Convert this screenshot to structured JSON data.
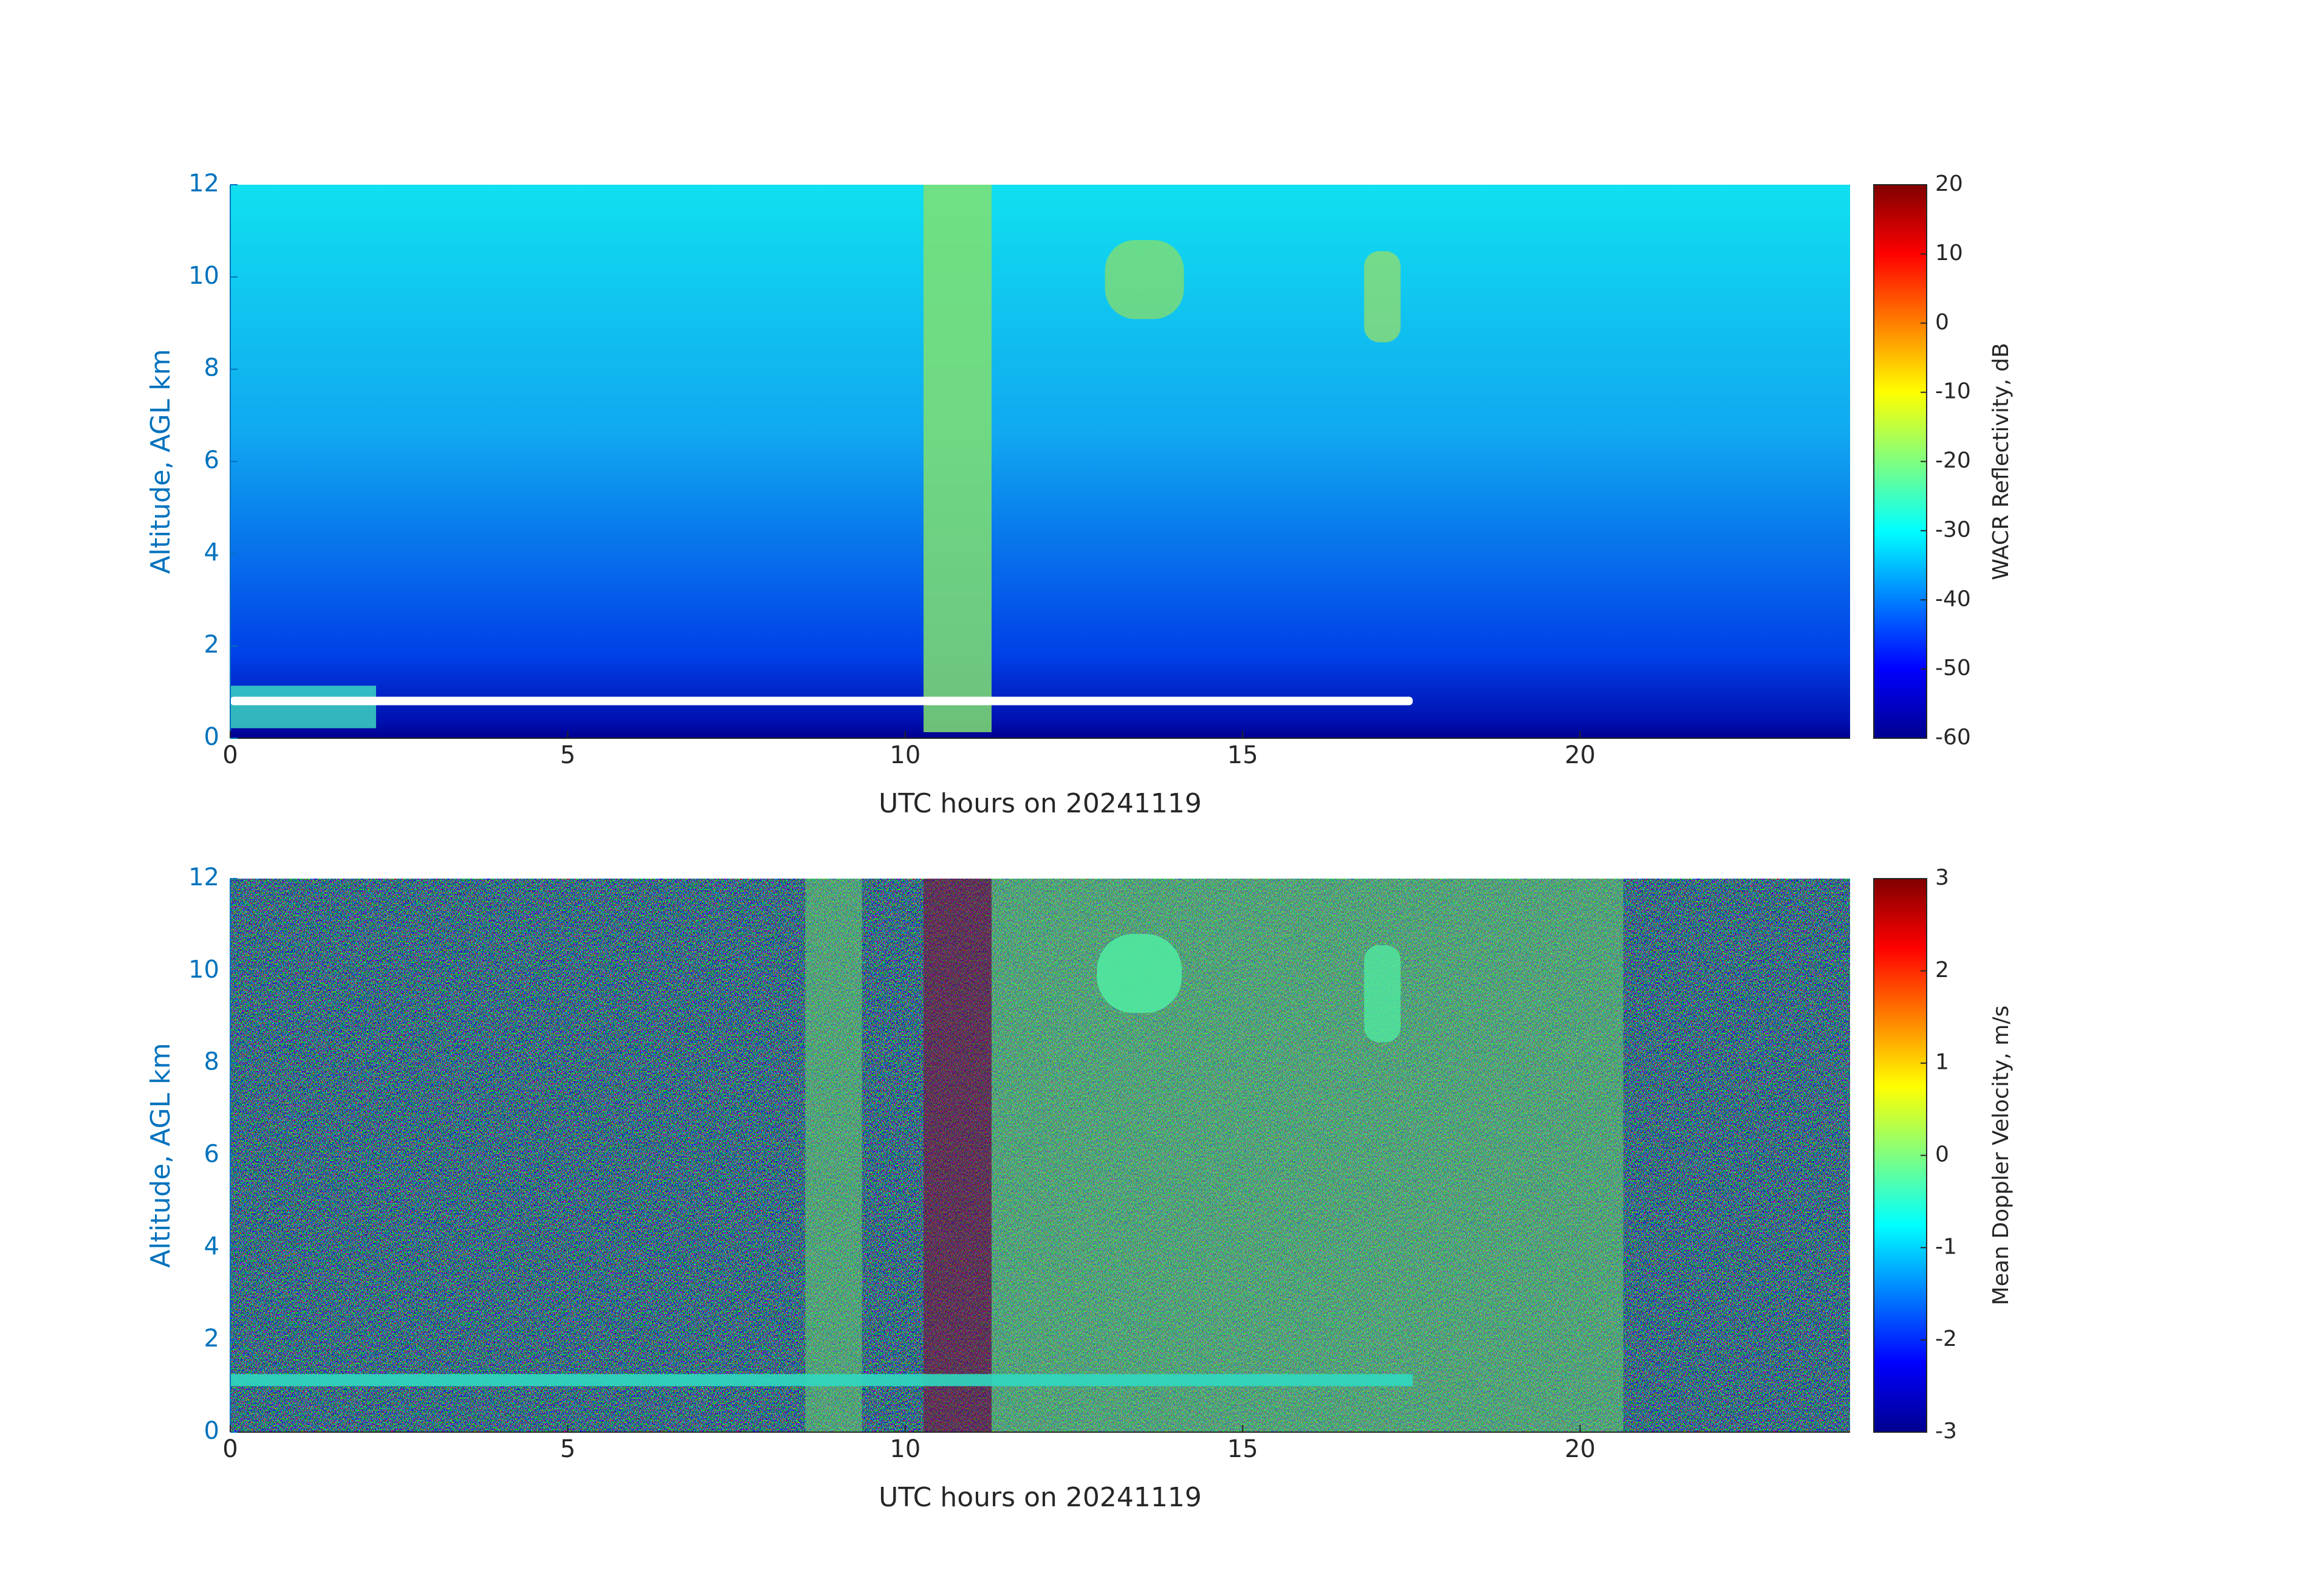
{
  "chart_data": [
    {
      "type": "heatmap",
      "xlabel": "UTC hours on 20241119",
      "ylabel": "Altitude, AGL km",
      "xlim": [
        0,
        24
      ],
      "xticks": [
        0,
        5,
        10,
        15,
        20
      ],
      "ylim": [
        0,
        12
      ],
      "yticks": [
        0,
        2,
        4,
        6,
        8,
        10,
        12
      ],
      "colormap": "jet",
      "colorbar": {
        "label": "WACR Reflectivity, dB",
        "lim": [
          -60,
          20
        ],
        "ticks": [
          -60,
          -50,
          -40,
          -30,
          -20,
          -10,
          0,
          10,
          20
        ]
      }
    },
    {
      "type": "heatmap",
      "xlabel": "UTC hours on 20241119",
      "ylabel": "Altitude, AGL km",
      "xlim": [
        0,
        24
      ],
      "xticks": [
        0,
        5,
        10,
        15,
        20
      ],
      "ylim": [
        0,
        12
      ],
      "yticks": [
        0,
        2,
        4,
        6,
        8,
        10,
        12
      ],
      "colormap": "jet",
      "colorbar": {
        "label": "Mean Doppler Velocity, m/s",
        "lim": [
          -3,
          3
        ],
        "ticks": [
          -3,
          -2,
          -1,
          0,
          1,
          2,
          3
        ]
      }
    }
  ]
}
